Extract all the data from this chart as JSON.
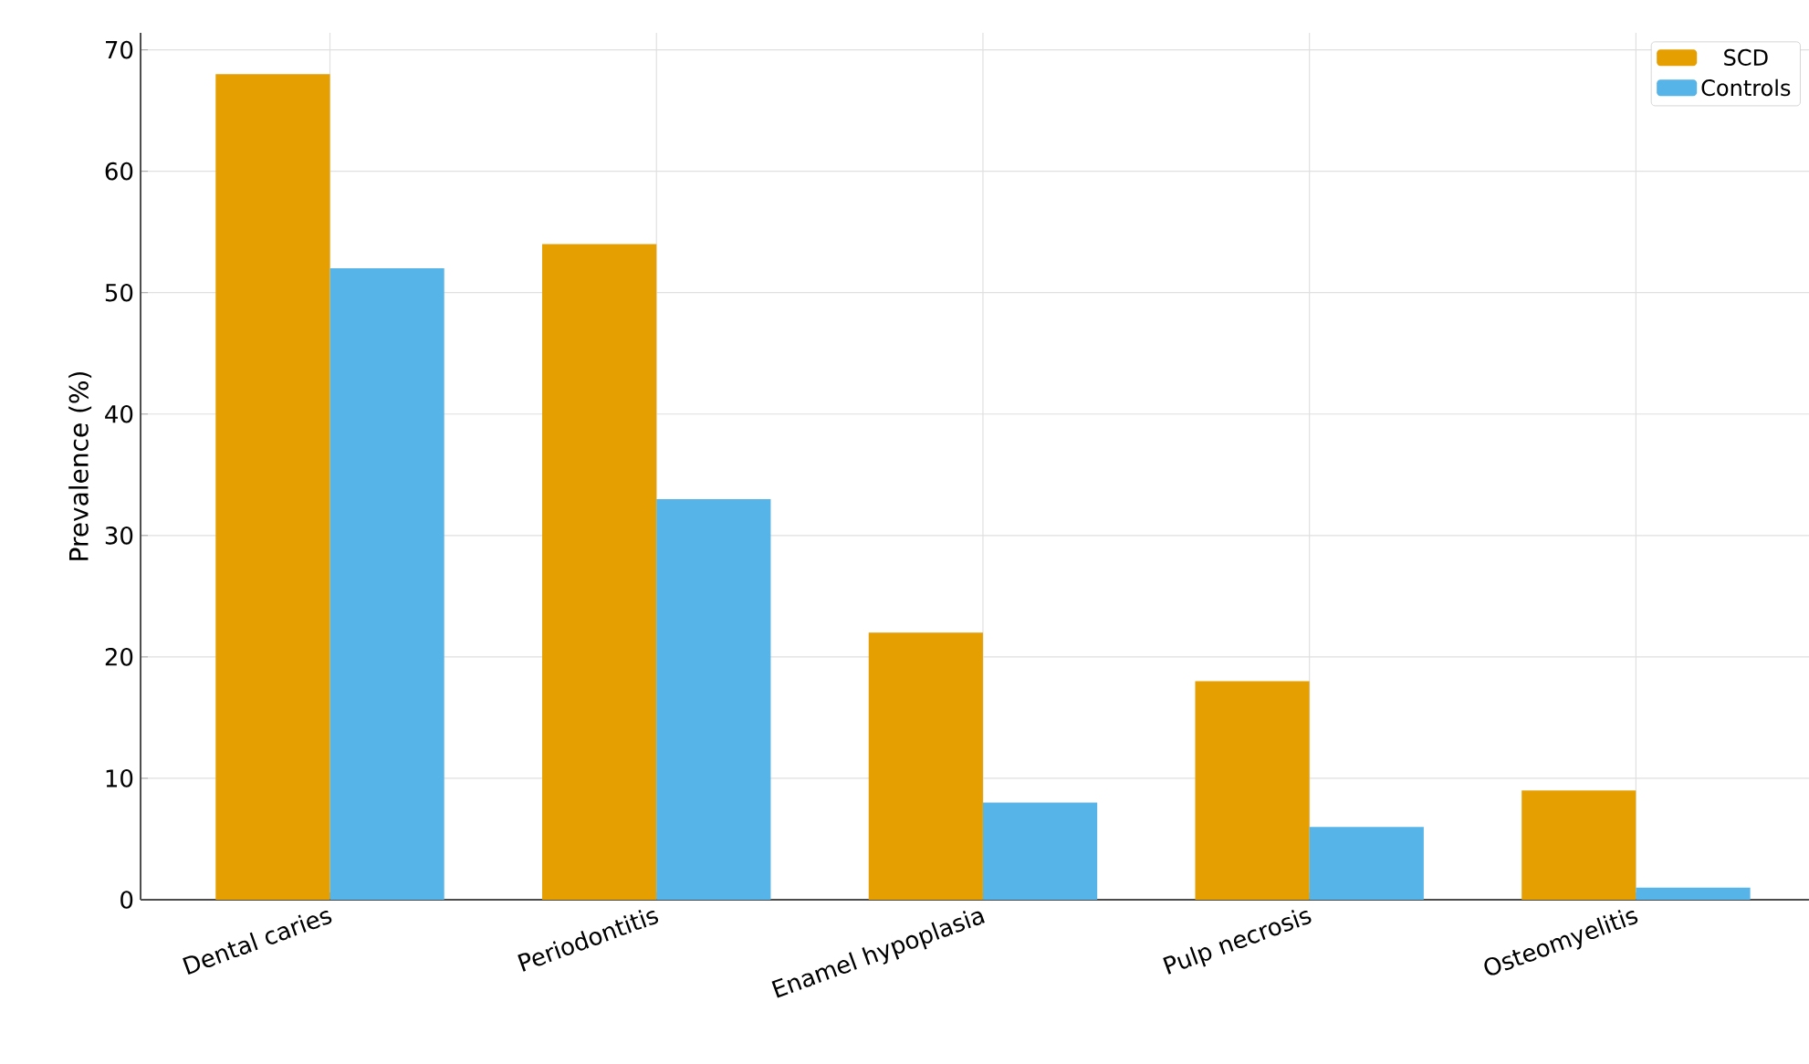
{
  "chart_data": {
    "type": "bar",
    "ylabel": "Prevalence (%)",
    "categories": [
      "Dental caries",
      "Periodontitis",
      "Enamel hypoplasia",
      "Pulp necrosis",
      "Osteomyelitis"
    ],
    "series": [
      {
        "name": "SCD",
        "color": "#e69f00",
        "values": [
          68,
          54,
          22,
          18,
          9
        ]
      },
      {
        "name": "Controls",
        "color": "#56b4e9",
        "values": [
          52,
          33,
          8,
          6,
          1
        ]
      }
    ],
    "ylim": [
      0,
      71.4
    ],
    "yticks": [
      0,
      10,
      20,
      30,
      40,
      50,
      60,
      70
    ],
    "grid": true,
    "legend": "top right"
  }
}
